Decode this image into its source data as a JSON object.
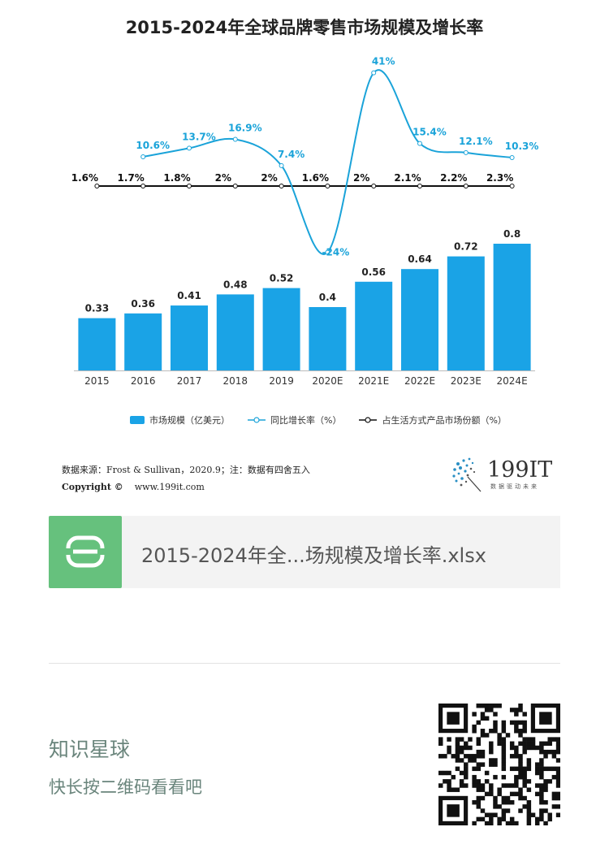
{
  "chart_data": {
    "type": "bar",
    "title": "2015-2024年全球品牌零售市场规模及增长率",
    "categories": [
      "2015",
      "2016",
      "2017",
      "2018",
      "2019",
      "2020E",
      "2021E",
      "2022E",
      "2023E",
      "2024E"
    ],
    "series": [
      {
        "name": "市场规模（亿美元）",
        "type": "bar",
        "values": [
          0.33,
          0.36,
          0.41,
          0.48,
          0.52,
          0.4,
          0.56,
          0.64,
          0.72,
          0.8
        ],
        "labels": [
          "0.33",
          "0.36",
          "0.41",
          "0.48",
          "0.52",
          "0.4",
          "0.56",
          "0.64",
          "0.72",
          "0.8"
        ]
      },
      {
        "name": "同比增长率（%）",
        "type": "line",
        "values": [
          null,
          10.6,
          13.7,
          16.9,
          7.4,
          -24,
          41,
          15.4,
          12.1,
          10.3
        ],
        "labels": [
          "",
          "10.6%",
          "13.7%",
          "16.9%",
          "7.4%",
          "-24%",
          "41%",
          "15.4%",
          "12.1%",
          "10.3%"
        ]
      },
      {
        "name": "占生活方式产品市场份额（%）",
        "type": "line",
        "values": [
          1.6,
          1.7,
          1.8,
          2,
          2,
          1.6,
          2,
          2.1,
          2.2,
          2.3
        ],
        "labels": [
          "1.6%",
          "1.7%",
          "1.8%",
          "2%",
          "2%",
          "1.6%",
          "2%",
          "2.1%",
          "2.2%",
          "2.3%"
        ]
      }
    ],
    "colors": {
      "bar": "#1aa3e6",
      "growth": "#1aa3d9",
      "share": "#111111"
    },
    "legend_position": "bottom",
    "grid": false
  },
  "source": {
    "line1": "数据来源：Frost & Sullivan，2020.9；注：数据有四舍五入",
    "copyright_label": "Copyright ©",
    "copyright_site": "www.199it.com"
  },
  "logo": {
    "text": "199IT",
    "subtitle": "数据驱动未来"
  },
  "file": {
    "icon": "S",
    "name": "2015-2024年全...场规模及增长率.xlsx",
    "icon_color": "#66c17d"
  },
  "footer": {
    "title": "知识星球",
    "subtitle": "快长按二维码看看吧"
  }
}
